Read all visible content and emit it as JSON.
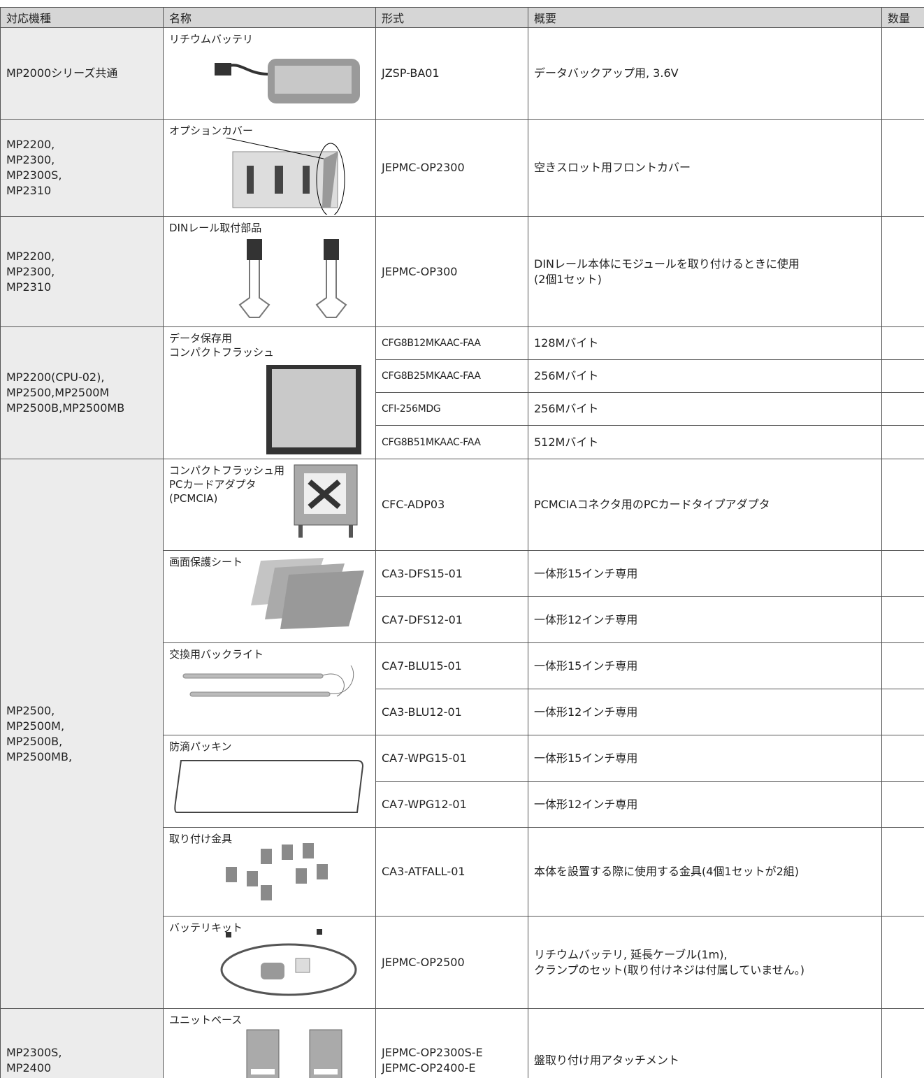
{
  "header": [
    "対応機種",
    "名称",
    "形式",
    "概要",
    "数量"
  ],
  "groups": [
    {
      "models": [
        "MP2000シリーズ共通"
      ],
      "items": [
        {
          "name": [
            "リチウムバッテリ"
          ],
          "variants": [
            {
              "code": [
                "JZSP-BA01"
              ],
              "summary": [
                "データバックアップ用, 3.6V"
              ]
            }
          ]
        }
      ]
    },
    {
      "models": [
        "MP2200,",
        "MP2300,",
        "MP2300S,",
        "MP2310"
      ],
      "items": [
        {
          "name": [
            "オプションカバー"
          ],
          "variants": [
            {
              "code": [
                "JEPMC-OP2300"
              ],
              "summary": [
                "空きスロット用フロントカバー"
              ]
            }
          ]
        }
      ]
    },
    {
      "models": [
        "MP2200,",
        "MP2300,",
        "MP2310"
      ],
      "items": [
        {
          "name": [
            "DINレール取付部品"
          ],
          "variants": [
            {
              "code": [
                "JEPMC-OP300"
              ],
              "summary": [
                "DINレール本体にモジュールを取り付けるときに使用",
                "(2個1セット)"
              ]
            }
          ]
        }
      ]
    },
    {
      "models": [
        "MP2200(CPU-02),",
        "MP2500,MP2500M",
        "MP2500B,MP2500MB"
      ],
      "items": [
        {
          "name": [
            "データ保存用",
            "コンパクトフラッシュ"
          ],
          "variants": [
            {
              "code": [
                "CFG8B12MKAAC-FAA"
              ],
              "summary": [
                "128Mバイト"
              ]
            },
            {
              "code": [
                "CFG8B25MKAAC-FAA"
              ],
              "summary": [
                "256Mバイト"
              ]
            },
            {
              "code": [
                "CFI-256MDG"
              ],
              "summary": [
                "256Mバイト"
              ]
            },
            {
              "code": [
                "CFG8B51MKAAC-FAA"
              ],
              "summary": [
                "512Mバイト"
              ]
            }
          ]
        }
      ]
    },
    {
      "models": [
        "MP2500,",
        "MP2500M,",
        "MP2500B,",
        "MP2500MB,"
      ],
      "items": [
        {
          "name": [
            "コンパクトフラッシュ用",
            "PCカードアダプタ",
            "(PCMCIA)"
          ],
          "variants": [
            {
              "code": [
                "CFC-ADP03"
              ],
              "summary": [
                "PCMCIAコネクタ用のPCカードタイプアダプタ"
              ]
            }
          ]
        },
        {
          "name": [
            "画面保護シート"
          ],
          "variants": [
            {
              "code": [
                "CA3-DFS15-01"
              ],
              "summary": [
                "一体形15インチ専用"
              ]
            },
            {
              "code": [
                "CA7-DFS12-01"
              ],
              "summary": [
                "一体形12インチ専用"
              ]
            }
          ]
        },
        {
          "name": [
            "交換用バックライト"
          ],
          "variants": [
            {
              "code": [
                "CA7-BLU15-01"
              ],
              "summary": [
                "一体形15インチ専用"
              ]
            },
            {
              "code": [
                "CA3-BLU12-01"
              ],
              "summary": [
                "一体形12インチ専用"
              ]
            }
          ]
        },
        {
          "name": [
            "防滴パッキン"
          ],
          "variants": [
            {
              "code": [
                "CA7-WPG15-01"
              ],
              "summary": [
                "一体形15インチ専用"
              ]
            },
            {
              "code": [
                "CA7-WPG12-01"
              ],
              "summary": [
                "一体形12インチ専用"
              ]
            }
          ]
        },
        {
          "name": [
            "取り付け金具"
          ],
          "variants": [
            {
              "code": [
                "CA3-ATFALL-01"
              ],
              "summary": [
                "本体を設置する際に使用する金具(4個1セットが2組)"
              ]
            }
          ]
        },
        {
          "name": [
            "バッテリキット"
          ],
          "variants": [
            {
              "code": [
                "JEPMC-OP2500"
              ],
              "summary": [
                "リチウムバッテリ, 延長ケーブル(1m),",
                "クランプのセット(取り付けネジは付属していません。)"
              ]
            }
          ]
        }
      ]
    },
    {
      "models": [
        "MP2300S,",
        "MP2400"
      ],
      "items": [
        {
          "name": [
            "ユニットベース"
          ],
          "variants": [
            {
              "code": [
                "JEPMC-OP2300S-E",
                "JEPMC-OP2400-E"
              ],
              "summary": [
                "盤取り付け用アタッチメント"
              ]
            }
          ]
        }
      ]
    }
  ]
}
